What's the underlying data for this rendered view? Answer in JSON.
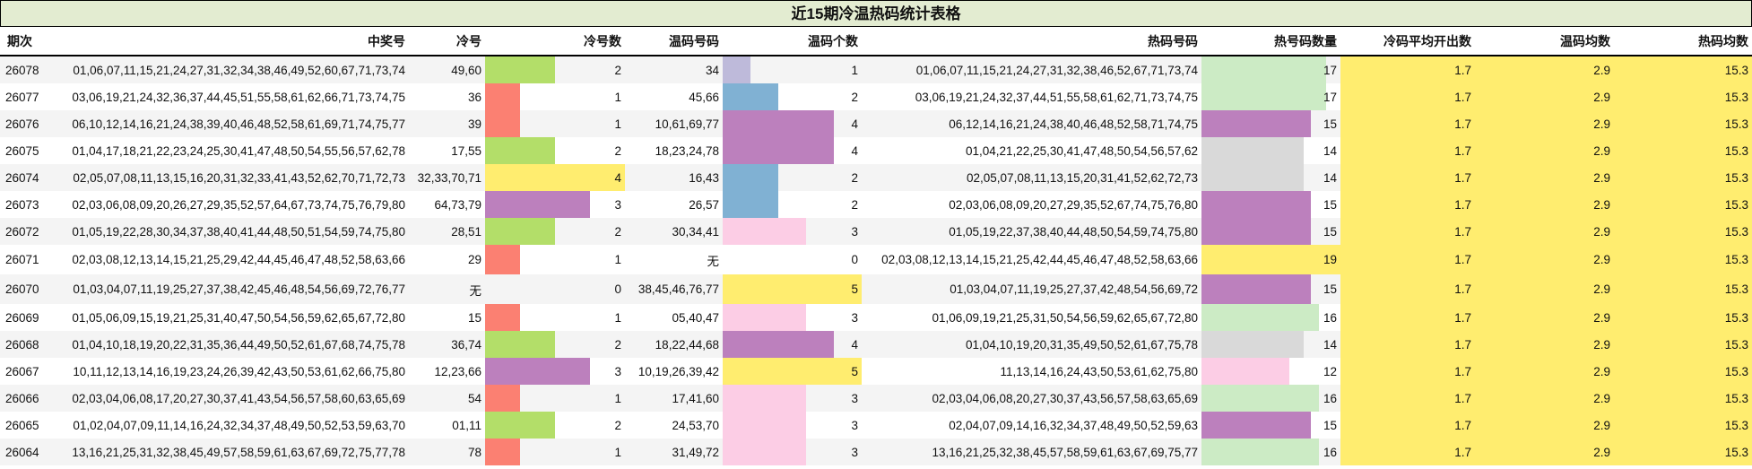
{
  "title": "近15期冷温热码统计表格",
  "headers": [
    "期次",
    "中奖号",
    "冷号",
    "冷号数",
    "温码号码",
    "温码个数",
    "热码号码",
    "热号码数量",
    "冷码平均开出数",
    "温码均数",
    "热码均数"
  ],
  "colors": {
    "stripe": "#f4f4f4",
    "avg_bg": "#ffed6f",
    "title_bg": "#e3ecd1",
    "cold": {
      "1": "#fb8072",
      "2": "#b3de69",
      "3": "#bc80bd",
      "4": "#ffed6f"
    },
    "warm": {
      "1": "#bebada",
      "2": "#80b1d3",
      "3": "#fccde5",
      "4": "#bc80bd",
      "5": "#ffed6f"
    },
    "hot": {
      "12": "#fccde5",
      "14": "#d9d9d9",
      "15": "#bc80bd",
      "16": "#ccebc5",
      "17": "#ccebc5",
      "19": "#ffed6f"
    }
  },
  "bar_max": {
    "cold": 4,
    "warm": 5,
    "hot": 19
  },
  "rows": [
    {
      "issue": "26078",
      "winning": "01,06,07,11,15,21,24,27,31,32,34,38,46,49,52,60,67,71,73,74",
      "cold": "49,60",
      "cold_count": 2,
      "warm": "34",
      "warm_count": 1,
      "hot": "01,06,07,11,15,21,24,27,31,32,38,46,52,67,71,73,74",
      "hot_count": 17,
      "cold_avg": "1.7",
      "warm_avg": "2.9",
      "hot_avg": "15.3"
    },
    {
      "issue": "26077",
      "winning": "03,06,19,21,24,32,36,37,44,45,51,55,58,61,62,66,71,73,74,75",
      "cold": "36",
      "cold_count": 1,
      "warm": "45,66",
      "warm_count": 2,
      "hot": "03,06,19,21,24,32,37,44,51,55,58,61,62,71,73,74,75",
      "hot_count": 17,
      "cold_avg": "1.7",
      "warm_avg": "2.9",
      "hot_avg": "15.3"
    },
    {
      "issue": "26076",
      "winning": "06,10,12,14,16,21,24,38,39,40,46,48,52,58,61,69,71,74,75,77",
      "cold": "39",
      "cold_count": 1,
      "warm": "10,61,69,77",
      "warm_count": 4,
      "hot": "06,12,14,16,21,24,38,40,46,48,52,58,71,74,75",
      "hot_count": 15,
      "cold_avg": "1.7",
      "warm_avg": "2.9",
      "hot_avg": "15.3"
    },
    {
      "issue": "26075",
      "winning": "01,04,17,18,21,22,23,24,25,30,41,47,48,50,54,55,56,57,62,78",
      "cold": "17,55",
      "cold_count": 2,
      "warm": "18,23,24,78",
      "warm_count": 4,
      "hot": "01,04,21,22,25,30,41,47,48,50,54,56,57,62",
      "hot_count": 14,
      "cold_avg": "1.7",
      "warm_avg": "2.9",
      "hot_avg": "15.3"
    },
    {
      "issue": "26074",
      "winning": "02,05,07,08,11,13,15,16,20,31,32,33,41,43,52,62,70,71,72,73",
      "cold": "32,33,70,71",
      "cold_count": 4,
      "warm": "16,43",
      "warm_count": 2,
      "hot": "02,05,07,08,11,13,15,20,31,41,52,62,72,73",
      "hot_count": 14,
      "cold_avg": "1.7",
      "warm_avg": "2.9",
      "hot_avg": "15.3"
    },
    {
      "issue": "26073",
      "winning": "02,03,06,08,09,20,26,27,29,35,52,57,64,67,73,74,75,76,79,80",
      "cold": "64,73,79",
      "cold_count": 3,
      "warm": "26,57",
      "warm_count": 2,
      "hot": "02,03,06,08,09,20,27,29,35,52,67,74,75,76,80",
      "hot_count": 15,
      "cold_avg": "1.7",
      "warm_avg": "2.9",
      "hot_avg": "15.3"
    },
    {
      "issue": "26072",
      "winning": "01,05,19,22,28,30,34,37,38,40,41,44,48,50,51,54,59,74,75,80",
      "cold": "28,51",
      "cold_count": 2,
      "warm": "30,34,41",
      "warm_count": 3,
      "hot": "01,05,19,22,37,38,40,44,48,50,54,59,74,75,80",
      "hot_count": 15,
      "cold_avg": "1.7",
      "warm_avg": "2.9",
      "hot_avg": "15.3"
    },
    {
      "issue": "26071",
      "winning": "02,03,08,12,13,14,15,21,25,29,42,44,45,46,47,48,52,58,63,66",
      "cold": "29",
      "cold_count": 1,
      "warm": "无",
      "warm_count": 0,
      "hot": "02,03,08,12,13,14,15,21,25,42,44,45,46,47,48,52,58,63,66",
      "hot_count": 19,
      "cold_avg": "1.7",
      "warm_avg": "2.9",
      "hot_avg": "15.3"
    },
    {
      "issue": "26070",
      "winning": "01,03,04,07,11,19,25,27,37,38,42,45,46,48,54,56,69,72,76,77",
      "cold": "无",
      "cold_count": 0,
      "warm": "38,45,46,76,77",
      "warm_count": 5,
      "hot": "01,03,04,07,11,19,25,27,37,42,48,54,56,69,72",
      "hot_count": 15,
      "cold_avg": "1.7",
      "warm_avg": "2.9",
      "hot_avg": "15.3"
    },
    {
      "issue": "26069",
      "winning": "01,05,06,09,15,19,21,25,31,40,47,50,54,56,59,62,65,67,72,80",
      "cold": "15",
      "cold_count": 1,
      "warm": "05,40,47",
      "warm_count": 3,
      "hot": "01,06,09,19,21,25,31,50,54,56,59,62,65,67,72,80",
      "hot_count": 16,
      "cold_avg": "1.7",
      "warm_avg": "2.9",
      "hot_avg": "15.3"
    },
    {
      "issue": "26068",
      "winning": "01,04,10,18,19,20,22,31,35,36,44,49,50,52,61,67,68,74,75,78",
      "cold": "36,74",
      "cold_count": 2,
      "warm": "18,22,44,68",
      "warm_count": 4,
      "hot": "01,04,10,19,20,31,35,49,50,52,61,67,75,78",
      "hot_count": 14,
      "cold_avg": "1.7",
      "warm_avg": "2.9",
      "hot_avg": "15.3"
    },
    {
      "issue": "26067",
      "winning": "10,11,12,13,14,16,19,23,24,26,39,42,43,50,53,61,62,66,75,80",
      "cold": "12,23,66",
      "cold_count": 3,
      "warm": "10,19,26,39,42",
      "warm_count": 5,
      "hot": "11,13,14,16,24,43,50,53,61,62,75,80",
      "hot_count": 12,
      "cold_avg": "1.7",
      "warm_avg": "2.9",
      "hot_avg": "15.3"
    },
    {
      "issue": "26066",
      "winning": "02,03,04,06,08,17,20,27,30,37,41,43,54,56,57,58,60,63,65,69",
      "cold": "54",
      "cold_count": 1,
      "warm": "17,41,60",
      "warm_count": 3,
      "hot": "02,03,04,06,08,20,27,30,37,43,56,57,58,63,65,69",
      "hot_count": 16,
      "cold_avg": "1.7",
      "warm_avg": "2.9",
      "hot_avg": "15.3"
    },
    {
      "issue": "26065",
      "winning": "01,02,04,07,09,11,14,16,24,32,34,37,48,49,50,52,53,59,63,70",
      "cold": "01,11",
      "cold_count": 2,
      "warm": "24,53,70",
      "warm_count": 3,
      "hot": "02,04,07,09,14,16,32,34,37,48,49,50,52,59,63",
      "hot_count": 15,
      "cold_avg": "1.7",
      "warm_avg": "2.9",
      "hot_avg": "15.3"
    },
    {
      "issue": "26064",
      "winning": "13,16,21,25,31,32,38,45,49,57,58,59,61,63,67,69,72,75,77,78",
      "cold": "78",
      "cold_count": 1,
      "warm": "31,49,72",
      "warm_count": 3,
      "hot": "13,16,21,25,32,38,45,57,58,59,61,63,67,69,75,77",
      "hot_count": 16,
      "cold_avg": "1.7",
      "warm_avg": "2.9",
      "hot_avg": "15.3"
    }
  ]
}
